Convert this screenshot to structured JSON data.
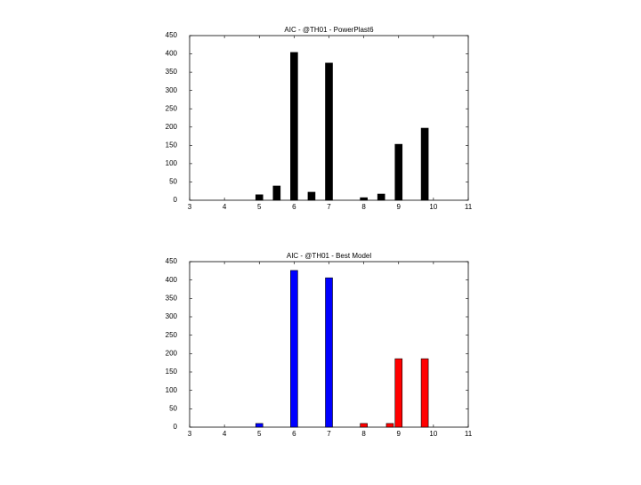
{
  "chart_data": [
    {
      "type": "bar",
      "title": "AIC - @TH01 - PowerPlast6",
      "xlim": [
        3,
        11
      ],
      "xticks": [
        3,
        4,
        5,
        6,
        7,
        8,
        9,
        10,
        11
      ],
      "ylim": [
        0,
        450
      ],
      "yticks": [
        0,
        50,
        100,
        150,
        200,
        250,
        300,
        350,
        400,
        450
      ],
      "series": [
        {
          "color": "#000000",
          "x": [
            5,
            5.5,
            6,
            6.5,
            7,
            8,
            8.5,
            9,
            9.75
          ],
          "values": [
            15,
            39,
            404,
            22,
            375,
            7,
            17,
            153,
            197
          ]
        }
      ]
    },
    {
      "type": "bar",
      "title": "AIC - @TH01 - Best Model",
      "xlim": [
        3,
        11
      ],
      "xticks": [
        3,
        4,
        5,
        6,
        7,
        8,
        9,
        10,
        11
      ],
      "ylim": [
        0,
        450
      ],
      "yticks": [
        0,
        50,
        100,
        150,
        200,
        250,
        300,
        350,
        400,
        450
      ],
      "series": [
        {
          "color": "#0000ff",
          "x": [
            5,
            6,
            7
          ],
          "values": [
            10,
            426,
            406
          ]
        },
        {
          "color": "#ff0000",
          "x": [
            8,
            8.75,
            9,
            9.75
          ],
          "values": [
            10,
            10,
            186,
            186
          ]
        }
      ]
    }
  ]
}
